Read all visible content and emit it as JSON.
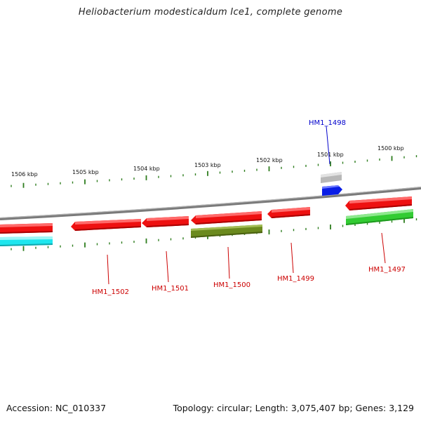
{
  "title": "Heliobacterium modesticaldum Ice1, complete genome",
  "footer": {
    "accession": "Accession: NC_010337",
    "summary": "Topology: circular; Length: 3,075,407 bp; Genes: 3,129"
  },
  "colors": {
    "backbone": "#8a8a8a",
    "tick": "#2e7d1e",
    "gene_label": "#cc0000",
    "highlight_label": "#0000cc",
    "red": "#ee1111",
    "cyan": "#1ee6ee",
    "olive": "#6b8a1e",
    "green": "#33cc33",
    "gray": "#b8b8b8",
    "blue": "#0a1ee6"
  },
  "ruler_labels": [
    "1506 kbp",
    "1505 kbp",
    "1504 kbp",
    "1503 kbp",
    "1502 kbp",
    "1501 kbp",
    "1500 kbp"
  ],
  "gene_labels": [
    {
      "text": "HM1_1502",
      "color": "gene_label"
    },
    {
      "text": "HM1_1501",
      "color": "gene_label"
    },
    {
      "text": "HM1_1500",
      "color": "gene_label"
    },
    {
      "text": "HM1_1499",
      "color": "gene_label"
    },
    {
      "text": "HM1_1497",
      "color": "gene_label"
    },
    {
      "text": "HM1_1498",
      "color": "highlight_label"
    }
  ]
}
